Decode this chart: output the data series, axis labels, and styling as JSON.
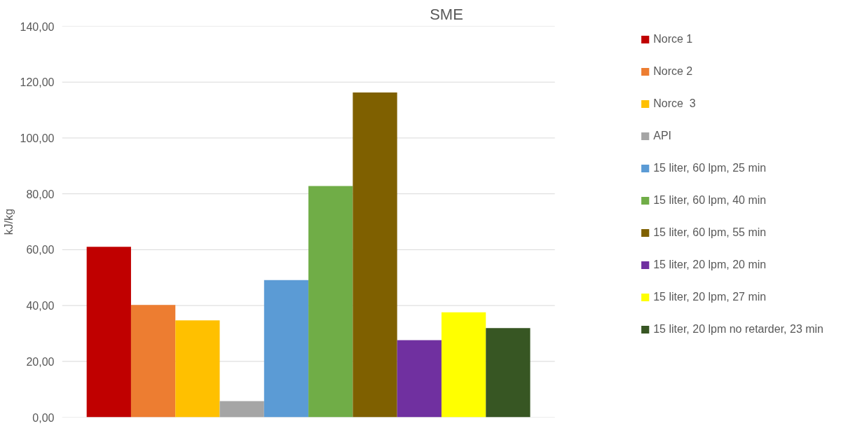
{
  "chart_data": {
    "type": "bar",
    "title": "SME",
    "ylabel": "kJ/kg",
    "categories": [
      null
    ],
    "series": [
      {
        "name": "Norce 1",
        "color": "#c00000",
        "values": [
          61.0
        ]
      },
      {
        "name": "Norce 2",
        "color": "#ed7d31",
        "values": [
          40.2
        ]
      },
      {
        "name": "Norce  3",
        "color": "#ffc000",
        "values": [
          34.7
        ]
      },
      {
        "name": "API",
        "color": "#a5a5a5",
        "values": [
          5.8
        ]
      },
      {
        "name": "15 liter, 60 lpm, 25 min",
        "color": "#5b9bd5",
        "values": [
          49.1
        ]
      },
      {
        "name": "15 liter, 60 lpm, 40 min",
        "color": "#70ad47",
        "values": [
          82.8
        ]
      },
      {
        "name": "15 liter, 60 lpm, 55 min",
        "color": "#7f6000",
        "values": [
          116.3
        ]
      },
      {
        "name": "15 liter, 20 lpm, 20 min",
        "color": "#7030a0",
        "values": [
          27.6
        ]
      },
      {
        "name": "15 liter, 20 lpm, 27 min",
        "color": "#ffff00",
        "values": [
          37.6
        ]
      },
      {
        "name": "15 liter, 20 lpm no retarder, 23 min",
        "color": "#375623",
        "values": [
          31.9
        ]
      }
    ],
    "ylim": [
      0,
      140
    ],
    "yticks": [
      {
        "value": 0,
        "label": "0,00"
      },
      {
        "value": 20,
        "label": "20,00"
      },
      {
        "value": 40,
        "label": "40,00"
      },
      {
        "value": 60,
        "label": "60,00"
      },
      {
        "value": 80,
        "label": "80,00"
      },
      {
        "value": 100,
        "label": "100,00"
      },
      {
        "value": 120,
        "label": "120,00"
      },
      {
        "value": 140,
        "label": "140,00"
      }
    ],
    "grid": "y",
    "legend": "right"
  }
}
